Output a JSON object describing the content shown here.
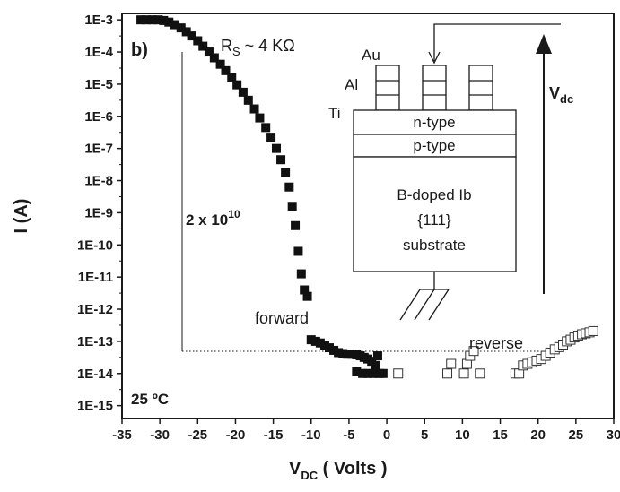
{
  "chart_data": {
    "type": "scatter",
    "panel_label": "b)",
    "xlabel_main": "V",
    "xlabel_sub": "DC",
    "xlabel_rest": " ( Volts )",
    "ylabel": "I (A)",
    "xlim": [
      -35,
      30
    ],
    "ylim_exp": [
      -15.4,
      -2.8
    ],
    "log_y": true,
    "x_ticks": [
      -35,
      -30,
      -25,
      -20,
      -15,
      -10,
      -5,
      0,
      5,
      10,
      15,
      20,
      25,
      30
    ],
    "x_tick_labels": [
      "-35",
      "-30",
      "-25",
      "-20",
      "-15",
      "-10",
      "-5",
      "0",
      "5",
      "10",
      "15",
      "20",
      "25",
      "30"
    ],
    "y_ticks_exp": [
      -3,
      -4,
      -5,
      -6,
      -7,
      -8,
      -9,
      -10,
      -11,
      -12,
      -13,
      -14,
      -15
    ],
    "y_tick_labels": [
      "1E-3",
      "1E-4",
      "1E-5",
      "1E-6",
      "1E-7",
      "1E-8",
      "1E-9",
      "1E-10",
      "1E-11",
      "1E-12",
      "1E-13",
      "1E-14",
      "1E-15"
    ],
    "series": [
      {
        "marker": "filled-square",
        "points": [
          [
            -32.5,
            -3.0
          ],
          [
            -31.8,
            -3.0
          ],
          [
            -31.0,
            -3.0
          ],
          [
            -30.2,
            -3.0
          ],
          [
            -29.5,
            -3.02
          ],
          [
            -28.8,
            -3.07
          ],
          [
            -28.0,
            -3.15
          ],
          [
            -27.2,
            -3.25
          ],
          [
            -26.5,
            -3.37
          ],
          [
            -25.8,
            -3.5
          ],
          [
            -25.0,
            -3.65
          ],
          [
            -24.3,
            -3.82
          ],
          [
            -23.5,
            -4.0
          ],
          [
            -22.8,
            -4.18
          ],
          [
            -22.0,
            -4.38
          ],
          [
            -21.3,
            -4.58
          ],
          [
            -20.5,
            -4.8
          ],
          [
            -19.8,
            -5.02
          ],
          [
            -19.0,
            -5.25
          ],
          [
            -18.3,
            -5.5
          ],
          [
            -17.5,
            -5.77
          ],
          [
            -16.8,
            -6.05
          ],
          [
            -16.0,
            -6.35
          ],
          [
            -15.3,
            -6.65
          ],
          [
            -14.6,
            -7.0
          ],
          [
            -14.0,
            -7.35
          ],
          [
            -13.4,
            -7.75
          ],
          [
            -12.9,
            -8.2
          ],
          [
            -12.5,
            -8.8
          ],
          [
            -12.1,
            -9.4
          ],
          [
            -11.7,
            -10.2
          ],
          [
            -11.3,
            -10.9
          ],
          [
            -10.9,
            -11.4
          ],
          [
            -10.5,
            -11.6
          ],
          [
            -10.0,
            -12.95
          ],
          [
            -9.4,
            -13.0
          ],
          [
            -8.8,
            -13.05
          ],
          [
            -8.2,
            -13.12
          ],
          [
            -7.6,
            -13.2
          ],
          [
            -7.0,
            -13.28
          ],
          [
            -6.4,
            -13.35
          ],
          [
            -5.8,
            -13.38
          ],
          [
            -5.2,
            -13.4
          ],
          [
            -4.6,
            -13.4
          ],
          [
            -4.0,
            -13.42
          ],
          [
            -3.5,
            -13.45
          ],
          [
            -3.0,
            -13.5
          ],
          [
            -2.5,
            -13.55
          ],
          [
            -2.0,
            -13.62
          ],
          [
            -1.5,
            -13.75
          ],
          [
            -1.0,
            -14.0
          ],
          [
            -0.5,
            -14.0
          ],
          [
            -1.8,
            -14.0
          ],
          [
            -2.5,
            -14.0
          ],
          [
            -3.2,
            -14.0
          ],
          [
            -4.0,
            -13.95
          ],
          [
            -1.2,
            -13.45
          ]
        ]
      },
      {
        "marker": "open-square",
        "points": [
          [
            1.5,
            -14.0
          ],
          [
            8.0,
            -14.0
          ],
          [
            8.5,
            -13.7
          ],
          [
            10.2,
            -14.0
          ],
          [
            10.6,
            -13.7
          ],
          [
            11.0,
            -13.45
          ],
          [
            11.5,
            -13.3
          ],
          [
            12.3,
            -14.0
          ],
          [
            17.0,
            -14.0
          ],
          [
            17.5,
            -14.0
          ],
          [
            18.0,
            -13.75
          ],
          [
            18.6,
            -13.7
          ],
          [
            19.2,
            -13.65
          ],
          [
            19.8,
            -13.6
          ],
          [
            20.4,
            -13.55
          ],
          [
            21.0,
            -13.45
          ],
          [
            21.6,
            -13.35
          ],
          [
            22.2,
            -13.25
          ],
          [
            22.8,
            -13.18
          ],
          [
            23.3,
            -13.1
          ],
          [
            23.8,
            -13.0
          ],
          [
            24.3,
            -12.95
          ],
          [
            24.8,
            -12.88
          ],
          [
            25.3,
            -12.82
          ],
          [
            25.8,
            -12.78
          ],
          [
            26.3,
            -12.75
          ],
          [
            26.8,
            -12.72
          ],
          [
            27.3,
            -12.68
          ]
        ]
      }
    ],
    "annotations": {
      "rs_text_main": "R",
      "rs_text_sub": "S",
      "rs_text_rest": " ~ 4 KΩ",
      "ratio_text_main": "2 x 10",
      "ratio_text_sup": "10",
      "forward_label": "forward",
      "reverse_label": "reverse",
      "temperature_label": "25 ºC"
    },
    "inset": {
      "au_label": "Au",
      "al_label": "Al",
      "ti_label": "Ti",
      "n_type_label": "n-type",
      "p_type_label": "p-type",
      "substrate_line1": "B-doped Ib",
      "substrate_line2": "{111}",
      "substrate_line3": "substrate",
      "vdc_main": "V",
      "vdc_sub": "dc"
    }
  }
}
